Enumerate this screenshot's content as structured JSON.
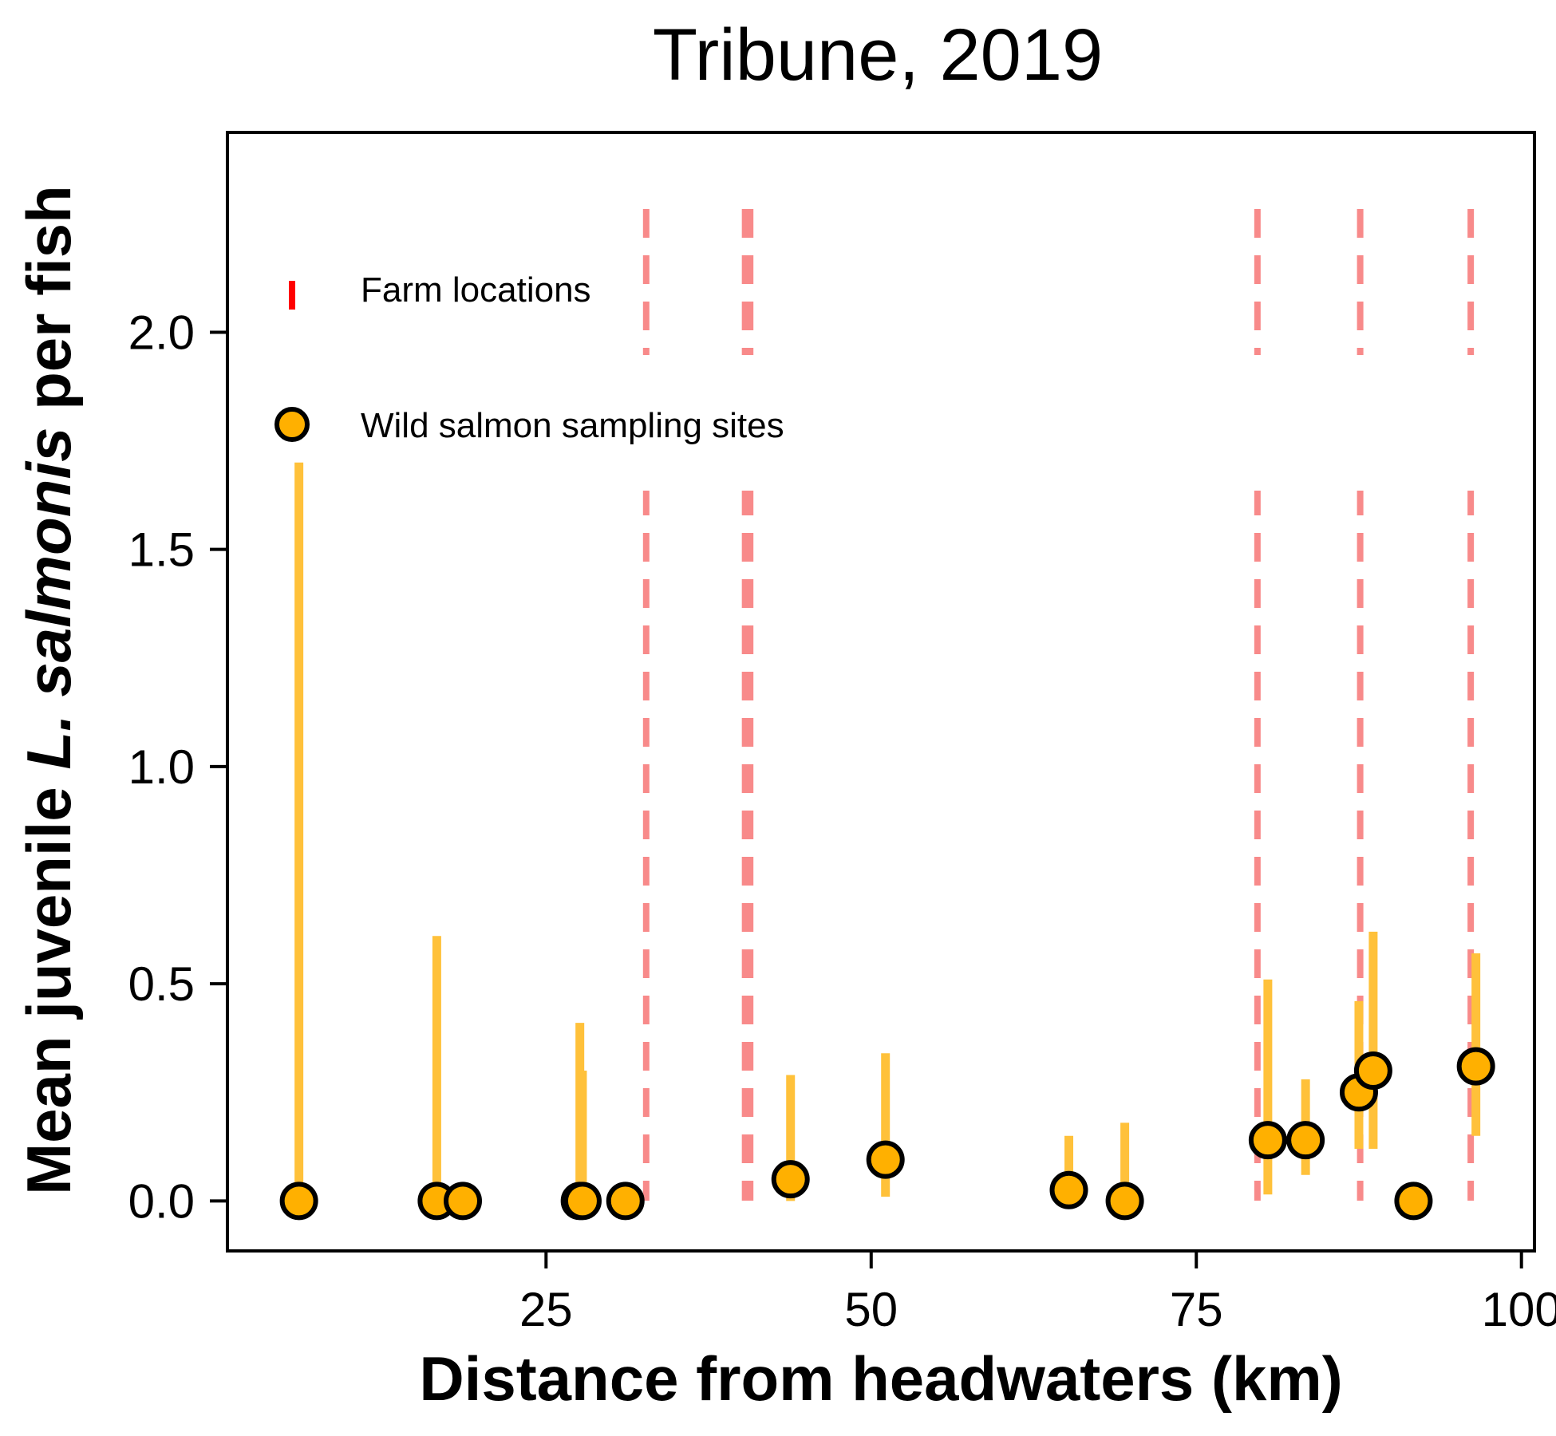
{
  "chart_data": {
    "type": "scatter",
    "title": "Tribune, 2019",
    "xlabel": "Distance from headwaters (km)",
    "ylabel": {
      "prefix": "Mean juvenile ",
      "italic": "L. salmonis",
      "suffix": "  per fish"
    },
    "xlim": [
      0.5,
      101
    ],
    "ylim": [
      -0.115,
      2.46
    ],
    "xticks": [
      {
        "value": 25,
        "label": "25"
      },
      {
        "value": 50,
        "label": "50"
      },
      {
        "value": 75,
        "label": "75"
      },
      {
        "value": 100,
        "label": "100"
      }
    ],
    "yticks": [
      {
        "value": 0.0,
        "label": "0.0"
      },
      {
        "value": 0.5,
        "label": "0.5"
      },
      {
        "value": 1.0,
        "label": "1.0"
      },
      {
        "value": 1.5,
        "label": "1.5"
      },
      {
        "value": 2.0,
        "label": "2.0"
      }
    ],
    "farm_locations": [
      32.7,
      40.3,
      40.7,
      79.7,
      87.6,
      96.1
    ],
    "sites": [
      {
        "x": 6.0,
        "y": 0.0,
        "ylow": 0.0,
        "yhigh": 1.7
      },
      {
        "x": 16.6,
        "y": 0.0,
        "ylow": 0.0,
        "yhigh": 0.61
      },
      {
        "x": 18.6,
        "y": 0.0,
        "ylow": 0.0,
        "yhigh": 0.0
      },
      {
        "x": 27.6,
        "y": 0.0,
        "ylow": 0.0,
        "yhigh": 0.41
      },
      {
        "x": 27.8,
        "y": 0.0,
        "ylow": 0.0,
        "yhigh": 0.3
      },
      {
        "x": 31.1,
        "y": 0.0,
        "ylow": 0.0,
        "yhigh": 0.0
      },
      {
        "x": 43.8,
        "y": 0.05,
        "ylow": 0.0,
        "yhigh": 0.29
      },
      {
        "x": 51.1,
        "y": 0.095,
        "ylow": 0.01,
        "yhigh": 0.34
      },
      {
        "x": 65.2,
        "y": 0.025,
        "ylow": 0.0,
        "yhigh": 0.15
      },
      {
        "x": 69.5,
        "y": 0.0,
        "ylow": 0.0,
        "yhigh": 0.18
      },
      {
        "x": 80.5,
        "y": 0.14,
        "ylow": 0.015,
        "yhigh": 0.51
      },
      {
        "x": 83.4,
        "y": 0.14,
        "ylow": 0.06,
        "yhigh": 0.28
      },
      {
        "x": 87.5,
        "y": 0.25,
        "ylow": 0.12,
        "yhigh": 0.46
      },
      {
        "x": 88.6,
        "y": 0.3,
        "ylow": 0.12,
        "yhigh": 0.62
      },
      {
        "x": 91.7,
        "y": 0.0,
        "ylow": 0.0,
        "yhigh": 0.0
      },
      {
        "x": 96.5,
        "y": 0.31,
        "ylow": 0.15,
        "yhigh": 0.57
      }
    ],
    "legend": {
      "position": "top-left",
      "items": [
        {
          "label": "Farm locations",
          "symbol": "red-dash",
          "color": "#ff0000"
        },
        {
          "label": "Wild salmon sampling sites",
          "symbol": "orange-circle",
          "color": "#ffb000"
        }
      ]
    },
    "colors": {
      "farm_line": "#f88a8a",
      "error_bar": "#ffc13a",
      "point_fill": "#ffb000",
      "point_stroke": "#000000"
    },
    "grid": false
  }
}
